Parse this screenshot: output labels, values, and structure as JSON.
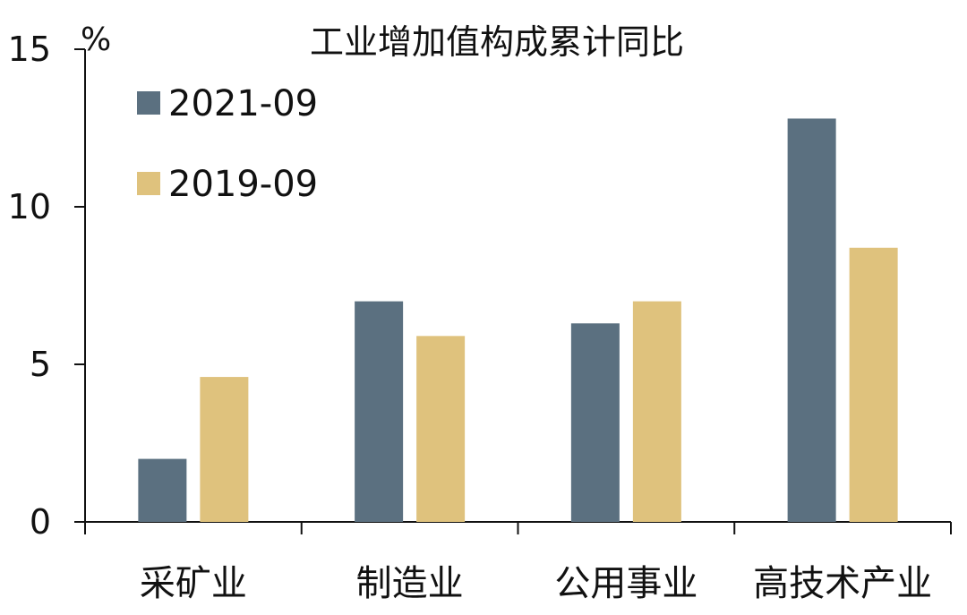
{
  "chart_data": {
    "type": "bar",
    "title": "工业增加值构成累计同比",
    "ylabel": "%",
    "xlabel": "",
    "ylim": [
      0,
      15
    ],
    "yticks": [
      0,
      5,
      10,
      15
    ],
    "grid": false,
    "legend_position": "top-left",
    "categories": [
      "采矿业",
      "制造业",
      "公用事业",
      "高技术产业"
    ],
    "series": [
      {
        "name": "2021-09",
        "color": "#5b7080",
        "values": [
          2.0,
          7.0,
          6.3,
          12.8
        ]
      },
      {
        "name": "2019-09",
        "color": "#dfc27d",
        "values": [
          4.6,
          5.9,
          7.0,
          8.7
        ]
      }
    ]
  }
}
